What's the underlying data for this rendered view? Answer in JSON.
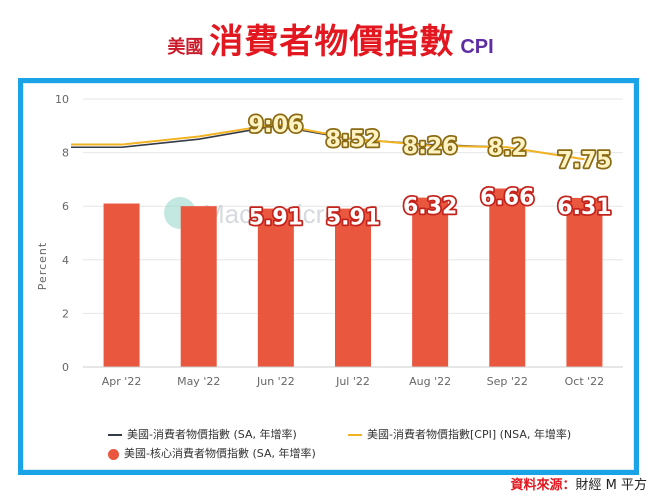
{
  "title": {
    "prefix": "美國",
    "main": "消費者物價指數",
    "suffix": "CPI"
  },
  "watermark": "Macromicro",
  "source": {
    "label": "資料來源：",
    "value": "財經 M 平方"
  },
  "colors": {
    "bar": "#e9573f",
    "sa_line": "#333b47",
    "nsa_line": "#f2b322",
    "frame": "#1ba3e8",
    "title": "#e2171f"
  },
  "legend": {
    "sa_line": "美國-消費者物價指數 (SA, 年增率)",
    "nsa_line": "美國-消費者物價指數[CPI] (NSA, 年增率)",
    "core_bar": "美國-核心消費者物價指數 (SA, 年增率)"
  },
  "chart_data": {
    "type": "bar",
    "categories": [
      "Apr '22",
      "May '22",
      "Jun '22",
      "Jul '22",
      "Aug '22",
      "Sep '22",
      "Oct '22"
    ],
    "ylabel": "Percent",
    "ylim": [
      0,
      10
    ],
    "yticks": [
      0,
      2,
      4,
      6,
      8,
      10
    ],
    "grid": true,
    "legend_position": "bottom",
    "series": [
      {
        "name": "美國-核心消費者物價指數 (SA, 年增率)",
        "type": "bar",
        "values": [
          6.1,
          6.0,
          5.91,
          5.91,
          6.32,
          6.66,
          6.31
        ],
        "labels": [
          "",
          "",
          "5.91",
          "5.91",
          "6.32",
          "6.66",
          "6.31"
        ]
      },
      {
        "name": "美國-消費者物價指數 (SA, 年增率)",
        "type": "line",
        "values": [
          8.2,
          8.5,
          9.0,
          8.5,
          8.3,
          8.2,
          7.75
        ]
      },
      {
        "name": "美國-消費者物價指數[CPI] (NSA, 年增率)",
        "type": "line",
        "values": [
          8.3,
          8.6,
          9.06,
          8.52,
          8.26,
          8.2,
          7.75
        ],
        "labels": [
          "",
          "",
          "9:06",
          "8:52",
          "8:26",
          "8.2",
          "7.75"
        ]
      }
    ]
  }
}
